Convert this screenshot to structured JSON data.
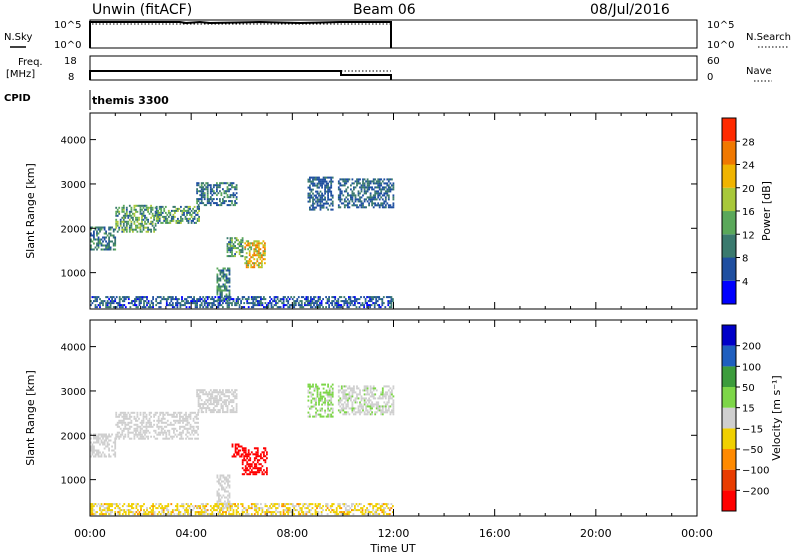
{
  "header": {
    "station": "Unwin (fitACF)",
    "beam": "Beam 06",
    "date": "08/Jul/2016"
  },
  "panels": {
    "nsky": {
      "label": "N.Sky",
      "ticks_left": [
        "10^5",
        "10^0"
      ],
      "ticks_right": [
        "10^5",
        "10^0"
      ],
      "right_label": "N.Search"
    },
    "freq": {
      "label_line1": "Freq.",
      "label_line2": "[MHz]",
      "ticks_left": [
        "18",
        "8"
      ],
      "ticks_right": [
        "60",
        "0"
      ],
      "right_label": "Nave"
    },
    "cpid": {
      "label": "CPID",
      "value": "themis 3300"
    }
  },
  "power_panel": {
    "ylabel": "Slant Range [km]",
    "yticks": [
      "4000",
      "3000",
      "2000",
      "1000"
    ],
    "colorbar_label": "Power [dB]",
    "colorbar_ticks": [
      "28",
      "24",
      "20",
      "16",
      "12",
      "8",
      "4"
    ],
    "colors": [
      "#0000ff",
      "#1f4fa0",
      "#3a7a6e",
      "#5aa85a",
      "#a8c83a",
      "#f0b400",
      "#f07800",
      "#ff2a00"
    ]
  },
  "velocity_panel": {
    "ylabel": "Slant Range [km]",
    "yticks": [
      "4000",
      "3000",
      "2000",
      "1000"
    ],
    "colorbar_label": "Velocity [m s⁻¹]",
    "colorbar_ticks": [
      "200",
      "100",
      "50",
      "15",
      "−15",
      "−50",
      "−100",
      "−200"
    ],
    "colors": [
      "#ff0000",
      "#e83c00",
      "#ff8a00",
      "#f0d000",
      "#cfcfcf",
      "#7dd648",
      "#3c9c3c",
      "#1f5fbf",
      "#0000c8"
    ]
  },
  "xaxis": {
    "ticks": [
      "00:00",
      "04:00",
      "08:00",
      "12:00",
      "16:00",
      "20:00",
      "00:00"
    ],
    "label": "Time UT"
  },
  "chart_data": [
    {
      "type": "heatmap",
      "name": "power",
      "xlabel": "Time UT",
      "ylabel": "Slant Range [km]",
      "xlim_hours": [
        0,
        24
      ],
      "ylim_km": [
        180,
        4600
      ],
      "zlabel": "Power [dB]",
      "zlim": [
        0,
        32
      ],
      "data_coverage_hours": [
        0,
        12
      ],
      "regions": [
        {
          "t0": 0.0,
          "t1": 1.0,
          "r0": 1500,
          "r1": 2000,
          "z": 9,
          "spread": 5
        },
        {
          "t0": 1.0,
          "t1": 2.6,
          "r0": 1900,
          "r1": 2500,
          "z": 13,
          "spread": 6
        },
        {
          "t0": 2.6,
          "t1": 4.3,
          "r0": 2100,
          "r1": 2500,
          "z": 12,
          "spread": 6
        },
        {
          "t0": 4.2,
          "t1": 5.8,
          "r0": 2500,
          "r1": 3000,
          "z": 9,
          "spread": 5
        },
        {
          "t0": 5.0,
          "t1": 5.5,
          "r0": 350,
          "r1": 1100,
          "z": 11,
          "spread": 5
        },
        {
          "t0": 5.4,
          "t1": 6.0,
          "r0": 1350,
          "r1": 1800,
          "z": 12,
          "spread": 5
        },
        {
          "t0": 6.1,
          "t1": 6.9,
          "r0": 1100,
          "r1": 1700,
          "z": 21,
          "spread": 7
        },
        {
          "t0": 8.6,
          "t1": 9.6,
          "r0": 2400,
          "r1": 3150,
          "z": 7,
          "spread": 3
        },
        {
          "t0": 9.8,
          "t1": 12.0,
          "r0": 2450,
          "r1": 3100,
          "z": 8,
          "spread": 4
        },
        {
          "t0": 0.0,
          "t1": 12.0,
          "r0": 200,
          "r1": 450,
          "z": 7,
          "spread": 4
        }
      ]
    },
    {
      "type": "heatmap",
      "name": "velocity",
      "xlabel": "Time UT",
      "ylabel": "Slant Range [km]",
      "xlim_hours": [
        0,
        24
      ],
      "ylim_km": [
        180,
        4600
      ],
      "zlabel": "Velocity [m s⁻¹]",
      "zlim": [
        -250,
        250
      ],
      "data_coverage_hours": [
        0,
        12
      ],
      "regions": [
        {
          "t0": 0.0,
          "t1": 1.0,
          "r0": 1500,
          "r1": 2000,
          "z": 0,
          "spread": 10
        },
        {
          "t0": 1.0,
          "t1": 4.3,
          "r0": 1900,
          "r1": 2500,
          "z": 0,
          "spread": 10
        },
        {
          "t0": 4.2,
          "t1": 5.8,
          "r0": 2500,
          "r1": 3000,
          "z": 0,
          "spread": 10
        },
        {
          "t0": 5.0,
          "t1": 5.5,
          "r0": 350,
          "r1": 1100,
          "z": 0,
          "spread": 10
        },
        {
          "t0": 5.6,
          "t1": 6.0,
          "r0": 1500,
          "r1": 1800,
          "z": -220,
          "spread": 20
        },
        {
          "t0": 6.0,
          "t1": 7.0,
          "r0": 1100,
          "r1": 1700,
          "z": -220,
          "spread": 20
        },
        {
          "t0": 8.6,
          "t1": 9.6,
          "r0": 2400,
          "r1": 3150,
          "z": 25,
          "spread": 20
        },
        {
          "t0": 9.8,
          "t1": 12.0,
          "r0": 2450,
          "r1": 3100,
          "z": 5,
          "spread": 15
        },
        {
          "t0": 0.0,
          "t1": 12.0,
          "r0": 200,
          "r1": 450,
          "z": -25,
          "spread": 30
        }
      ]
    }
  ]
}
